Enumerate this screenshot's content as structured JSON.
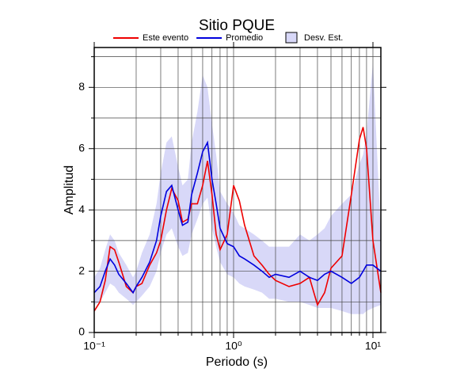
{
  "chart_data": {
    "type": "line",
    "title": "Sitio PQUE",
    "x_label": "Periodo (s)",
    "y_label": "Amplitud",
    "x": [
      0.1,
      0.11,
      0.12,
      0.13,
      0.14,
      0.15,
      0.17,
      0.19,
      0.2,
      0.22,
      0.25,
      0.28,
      0.3,
      0.33,
      0.36,
      0.4,
      0.43,
      0.47,
      0.5,
      0.55,
      0.6,
      0.65,
      0.7,
      0.75,
      0.8,
      0.9,
      1.0,
      1.1,
      1.2,
      1.4,
      1.6,
      1.8,
      2.0,
      2.5,
      3.0,
      3.5,
      4.0,
      4.5,
      5,
      6,
      7,
      8,
      8.5,
      9,
      10,
      11.4
    ],
    "band": {
      "name": "Desv. Est.",
      "color": "#d8d8f8",
      "edge": "#000000",
      "lower": [
        0.9,
        1.0,
        1.3,
        1.6,
        1.5,
        1.3,
        1.1,
        0.9,
        1.0,
        1.2,
        1.5,
        2.0,
        2.6,
        3.2,
        3.4,
        2.8,
        2.5,
        2.6,
        3.2,
        3.7,
        4.2,
        4.4,
        3.4,
        2.8,
        2.3,
        1.9,
        1.8,
        1.6,
        1.5,
        1.4,
        1.3,
        1.1,
        1.1,
        1.0,
        1.0,
        0.9,
        0.8,
        0.8,
        0.8,
        0.7,
        0.6,
        0.6,
        0.6,
        0.7,
        0.8,
        0.9
      ],
      "upper": [
        1.8,
        2.1,
        2.7,
        3.2,
        3.0,
        2.6,
        2.2,
        1.8,
        2.0,
        2.6,
        3.2,
        4.2,
        5.2,
        6.2,
        6.4,
        5.4,
        4.8,
        5.0,
        6.2,
        7.2,
        8.4,
        8.0,
        6.8,
        5.8,
        4.6,
        4.2,
        3.9,
        3.5,
        3.4,
        3.2,
        3.0,
        2.8,
        2.8,
        2.8,
        3.2,
        3.0,
        3.2,
        3.4,
        3.8,
        4.2,
        4.5,
        5.5,
        5.8,
        6.5,
        8.8,
        3.2
      ]
    },
    "series": [
      {
        "name": "Este evento",
        "color": "#ee0000",
        "values": [
          0.7,
          1.0,
          1.7,
          2.8,
          2.7,
          2.3,
          1.5,
          1.3,
          1.5,
          1.6,
          2.2,
          2.6,
          3.0,
          4.0,
          4.7,
          4.3,
          3.6,
          3.7,
          4.2,
          4.2,
          4.8,
          5.6,
          4.5,
          3.2,
          2.7,
          3.2,
          4.8,
          4.3,
          3.5,
          2.5,
          2.2,
          1.9,
          1.7,
          1.5,
          1.6,
          1.8,
          0.9,
          1.3,
          2.1,
          2.5,
          4.5,
          6.3,
          6.7,
          6.0,
          3.0,
          1.3
        ]
      },
      {
        "name": "Promedio",
        "color": "#0000dd",
        "values": [
          1.3,
          1.5,
          2.0,
          2.4,
          2.2,
          1.9,
          1.6,
          1.3,
          1.5,
          1.8,
          2.3,
          3.0,
          3.8,
          4.6,
          4.8,
          4.0,
          3.5,
          3.6,
          4.5,
          5.2,
          5.9,
          6.2,
          5.0,
          4.2,
          3.4,
          2.9,
          2.8,
          2.5,
          2.4,
          2.2,
          2.0,
          1.8,
          1.9,
          1.8,
          2.0,
          1.8,
          1.7,
          1.9,
          2.0,
          1.8,
          1.6,
          1.8,
          2.0,
          2.2,
          2.2,
          2.0
        ]
      }
    ],
    "log_x": true,
    "xlim": [
      0.1,
      11.4
    ],
    "xticks": [
      {
        "value": 0.1,
        "label": "10⁻¹"
      },
      {
        "value": 1,
        "label": "10⁰"
      },
      {
        "value": 10,
        "label": "10¹"
      }
    ],
    "minor_xticks": [
      0.2,
      0.3,
      0.4,
      0.5,
      0.6,
      0.7,
      0.8,
      0.9,
      2,
      3,
      4,
      5,
      6,
      7,
      8,
      9
    ],
    "ylim": [
      0,
      9.3
    ],
    "yticks": [
      0,
      2,
      4,
      6,
      8
    ],
    "minor_yticks": [
      1,
      3,
      5,
      7,
      9
    ],
    "grid": true
  }
}
